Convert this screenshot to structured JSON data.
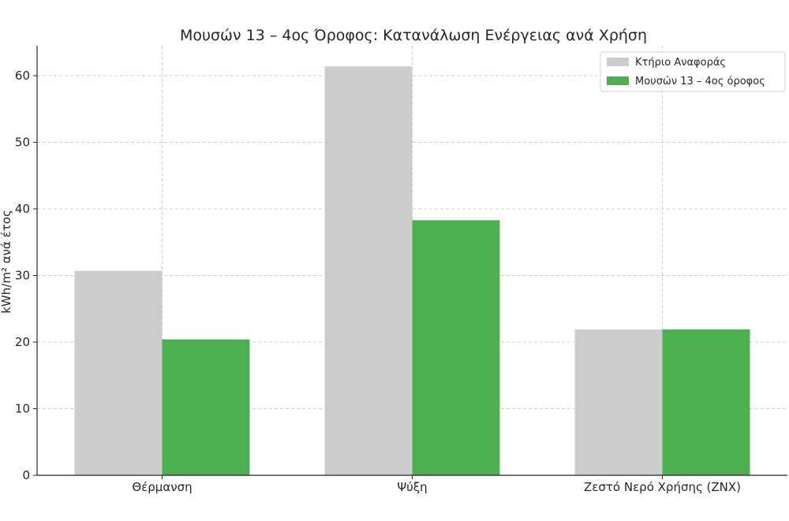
{
  "chart_data": {
    "type": "bar",
    "title": "Μουσών 13 – 4ος Όροφος: Κατανάλωση Ενέργειας ανά Χρήση",
    "xlabel": "",
    "ylabel": "kWh/m² ανά έτος",
    "categories": [
      "Θέρμανση",
      "Ψύξη",
      "Ζεστό Νερό Χρήσης (ΖΝΧ)"
    ],
    "series": [
      {
        "name": "Κτήριο Αναφοράς",
        "color": "#cccccc",
        "values": [
          30.7,
          61.4,
          21.9
        ]
      },
      {
        "name": "Μουσών 13 – 4ος όροφος",
        "color": "#4caf50",
        "values": [
          20.4,
          38.3,
          21.9
        ]
      }
    ],
    "ylim": [
      0,
      64.5
    ],
    "yticks": [
      0,
      10,
      20,
      30,
      40,
      50,
      60
    ],
    "grid": true,
    "legend": "top-right"
  }
}
